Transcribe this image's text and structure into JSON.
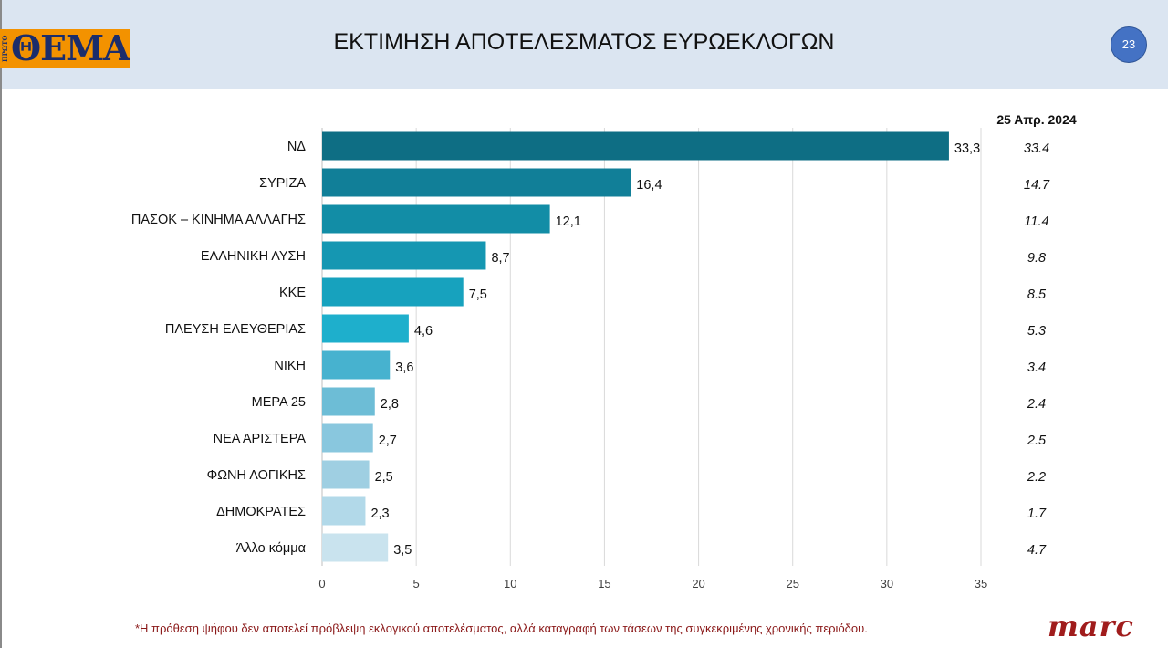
{
  "header": {
    "logo_small_text": "ΠΡΩΤΟ",
    "logo_text": "ΘΕΜΑ",
    "title": "ΕΚΤΙΜΗΣΗ ΑΠΟΤΕΛΕΣΜΑΤΟΣ ΕΥΡΩΕΚΛΟΓΩΝ",
    "page_number": "23"
  },
  "chart_data": {
    "type": "bar",
    "orientation": "horizontal",
    "categories": [
      "ΝΔ",
      "ΣΥΡΙΖΑ",
      "ΠΑΣΟΚ – ΚΙΝΗΜΑ ΑΛΛΑΓΗΣ",
      "ΕΛΛΗΝΙΚΗ ΛΥΣΗ",
      "ΚΚΕ",
      "ΠΛΕΥΣΗ ΕΛΕΥΘΕΡΙΑΣ",
      "ΝΙΚΗ",
      "ΜΕΡΑ 25",
      "ΝΕΑ ΑΡΙΣΤΕΡΑ",
      "ΦΩΝΗ ΛΟΓΙΚΗΣ",
      "ΔΗΜΟΚΡΑΤΕΣ",
      "Άλλο κόμμα"
    ],
    "values": [
      33.3,
      16.4,
      12.1,
      8.7,
      7.5,
      4.6,
      3.6,
      2.8,
      2.7,
      2.5,
      2.3,
      3.5
    ],
    "value_labels": [
      "33,3",
      "16,4",
      "12,1",
      "8,7",
      "7,5",
      "4,6",
      "3,6",
      "2,8",
      "2,7",
      "2,5",
      "2,3",
      "3,5"
    ],
    "previous": {
      "header": "25 Απρ. 2024",
      "values": [
        "33.4",
        "14.7",
        "11.4",
        "9.8",
        "8.5",
        "5.3",
        "3.4",
        "2.4",
        "2.5",
        "2.2",
        "1.7",
        "4.7"
      ]
    },
    "xlim": [
      0,
      35
    ],
    "xticks": [
      0,
      5,
      10,
      15,
      20,
      25,
      30,
      35
    ],
    "grid": true,
    "bar_colors": [
      "#0e6e84",
      "#117f98",
      "#128da6",
      "#1597b2",
      "#17a2be",
      "#1eafcc",
      "#47b2cf",
      "#6dbdd6",
      "#89c7de",
      "#9fcfe2",
      "#b2d9e9",
      "#c9e3ee"
    ],
    "gridline_color": "#d9d9d9"
  },
  "footer": {
    "note": "*Η πρόθεση ψήφου δεν αποτελεί πρόβλεψη εκλογικού αποτελέσματος, αλλά καταγραφή των τάσεων της συγκεκριμένης χρονικής περιόδου.",
    "brand": "marc"
  }
}
